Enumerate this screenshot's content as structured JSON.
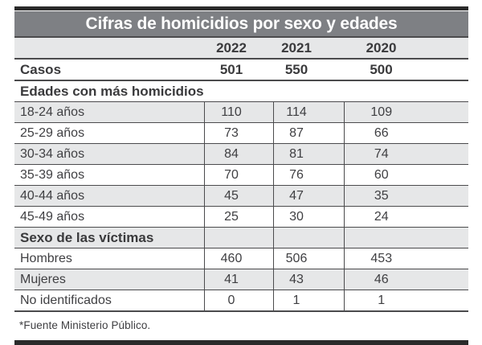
{
  "chart_data": {
    "type": "table",
    "title": "Cifras de homicidios por sexo y edades",
    "columns": [
      "2022",
      "2021",
      "2020"
    ],
    "totals_row": {
      "label": "Casos",
      "values": [
        "501",
        "550",
        "500"
      ]
    },
    "sections": [
      {
        "header": "Edades con más homicidios",
        "divided_header": false,
        "rows": [
          {
            "label": "18-24 años",
            "values": [
              "110",
              "114",
              "109"
            ]
          },
          {
            "label": "25-29 años",
            "values": [
              "73",
              "87",
              "66"
            ]
          },
          {
            "label": "30-34 años",
            "values": [
              "84",
              "81",
              "74"
            ]
          },
          {
            "label": "35-39 años",
            "values": [
              "70",
              "76",
              "60"
            ]
          },
          {
            "label": "40-44 años",
            "values": [
              "45",
              "47",
              "35"
            ]
          },
          {
            "label": "45-49 años",
            "values": [
              "25",
              "30",
              "24"
            ]
          }
        ]
      },
      {
        "header": "Sexo de las víctimas",
        "divided_header": true,
        "rows": [
          {
            "label": "Hombres",
            "values": [
              "460",
              "506",
              "453"
            ]
          },
          {
            "label": "Mujeres",
            "values": [
              "41",
              "43",
              "46"
            ]
          },
          {
            "label": "No identificados",
            "values": [
              "0",
              "1",
              "1"
            ]
          }
        ]
      }
    ],
    "source_note": "*Fuente Ministerio Público."
  },
  "colors": {
    "top_bottom_bar": "#2a2a2a",
    "title_bar": "#7e8084",
    "stripe": "#e6e7e8",
    "rule": "#4b4b4d",
    "text": "#3f3f42",
    "title_text": "#ffffff"
  }
}
